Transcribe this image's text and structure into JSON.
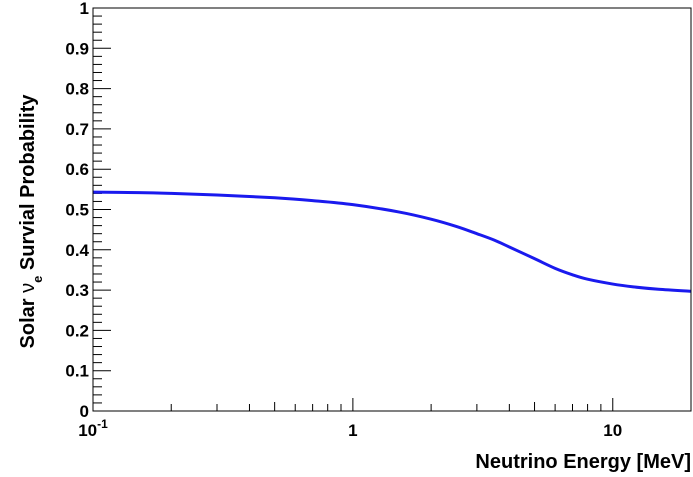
{
  "chart_data": {
    "type": "line",
    "title": "",
    "xlabel": "Neutrino Energy [MeV]",
    "ylabel": {
      "prefix": "Solar ",
      "symbol": "ν",
      "subscript": "e",
      "suffix": " Survial Probability"
    },
    "xscale": "log",
    "xlim": [
      0.1,
      20
    ],
    "ylim": [
      0,
      1
    ],
    "grid": false,
    "legend": "none",
    "x_tick_labels": [
      {
        "value": 0.1,
        "base": "10",
        "exponent": "-1"
      },
      {
        "value": 1,
        "base": "1",
        "exponent": ""
      },
      {
        "value": 10,
        "base": "10",
        "exponent": ""
      }
    ],
    "y_tick_labels": [
      {
        "value": 0,
        "label": "0"
      },
      {
        "value": 0.1,
        "label": "0.1"
      },
      {
        "value": 0.2,
        "label": "0.2"
      },
      {
        "value": 0.3,
        "label": "0.3"
      },
      {
        "value": 0.4,
        "label": "0.4"
      },
      {
        "value": 0.5,
        "label": "0.5"
      },
      {
        "value": 0.6,
        "label": "0.6"
      },
      {
        "value": 0.7,
        "label": "0.7"
      },
      {
        "value": 0.8,
        "label": "0.8"
      },
      {
        "value": 0.9,
        "label": "0.9"
      },
      {
        "value": 1,
        "label": "1"
      }
    ],
    "series": [
      {
        "color": "#1a1aee",
        "x": [
          0.1,
          0.15,
          0.2,
          0.3,
          0.5,
          0.7,
          1.0,
          1.5,
          2.0,
          2.5,
          3.0,
          3.5,
          4.0,
          5.0,
          6.0,
          7.0,
          8.0,
          10.0,
          12.0,
          15.0,
          20.0
        ],
        "y": [
          0.543,
          0.542,
          0.54,
          0.536,
          0.529,
          0.522,
          0.512,
          0.494,
          0.476,
          0.458,
          0.44,
          0.424,
          0.407,
          0.378,
          0.354,
          0.338,
          0.327,
          0.315,
          0.308,
          0.302,
          0.297
        ]
      }
    ]
  }
}
